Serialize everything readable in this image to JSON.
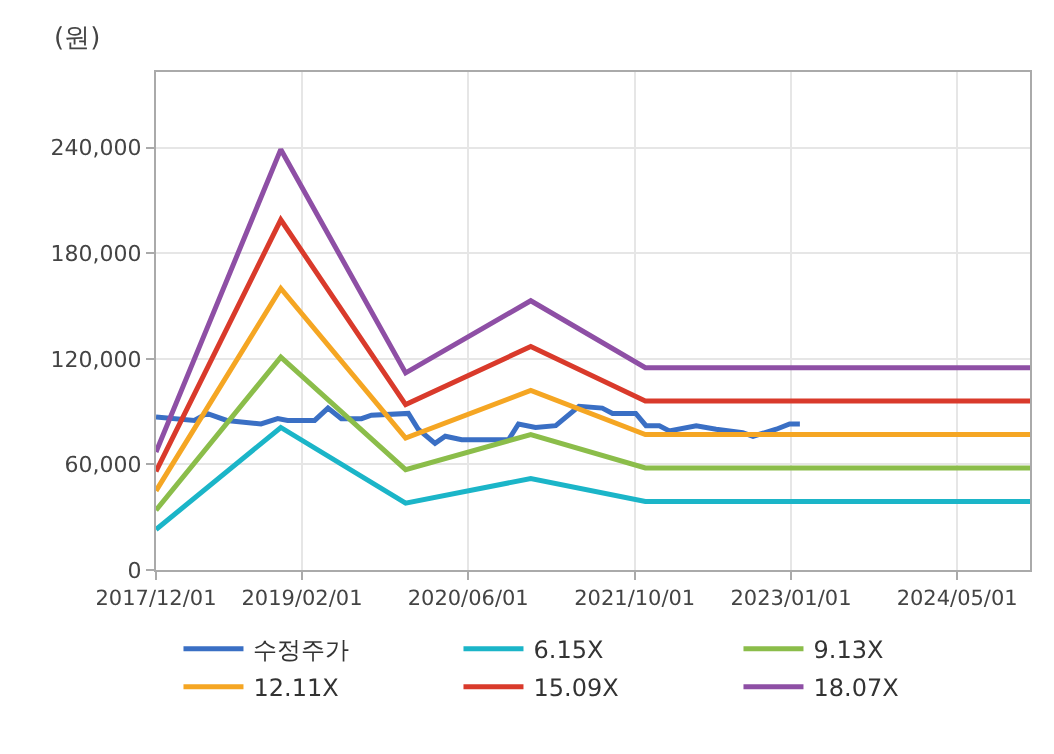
{
  "chart_data": {
    "type": "line",
    "ylabel": "(원)",
    "xlim": [
      "2017-12-01",
      "2024-11-30"
    ],
    "xticks": [
      {
        "value": "2017-12-01",
        "label": "2017/12/01"
      },
      {
        "value": "2019-02-01",
        "label": "2019/02/01"
      },
      {
        "value": "2020-06-01",
        "label": "2020/06/01"
      },
      {
        "value": "2021-10-01",
        "label": "2021/10/01"
      },
      {
        "value": "2023-01-01",
        "label": "2023/01/01"
      },
      {
        "value": "2024-05-01",
        "label": "2024/05/01"
      }
    ],
    "ylim": [
      0,
      283000
    ],
    "yticks": [
      0,
      {
        "value": 60000,
        "label": "60,000"
      },
      {
        "value": 120000,
        "label": "120,000"
      },
      {
        "value": 180000,
        "label": "180,000"
      },
      {
        "value": 240000,
        "label": "240,000"
      }
    ],
    "grid": true,
    "legend": "bottom",
    "marker": "none",
    "line_style": "solid",
    "series": [
      {
        "name": "수정주가",
        "color": "#3a6fc4",
        "x": [
          "2017-12-01",
          "2018-03-23",
          "2018-04-29",
          "2018-06-26",
          "2018-10-04",
          "2018-11-22",
          "2018-12-21",
          "2019-03-10",
          "2019-04-18",
          "2019-05-27",
          "2019-07-25",
          "2019-08-23",
          "2019-12-09",
          "2020-01-07",
          "2020-02-25",
          "2020-03-26",
          "2020-05-13",
          "2020-09-27",
          "2020-10-26",
          "2020-12-15",
          "2021-02-12",
          "2021-04-21",
          "2021-06-28",
          "2021-07-28",
          "2021-10-04",
          "2021-11-03",
          "2021-12-12",
          "2022-01-10",
          "2022-03-30",
          "2022-05-27",
          "2022-08-13",
          "2022-09-12",
          "2022-11-19",
          "2022-12-28",
          "2023-01-27"
        ],
        "values": [
          87000,
          85000,
          89000,
          85000,
          83000,
          86000,
          85000,
          85000,
          92000,
          86000,
          86000,
          88000,
          89000,
          80000,
          72000,
          76000,
          74000,
          74000,
          83000,
          81000,
          82000,
          93000,
          92000,
          89000,
          89000,
          82000,
          82000,
          79000,
          82000,
          80000,
          78000,
          76000,
          80000,
          83000,
          83000
        ]
      },
      {
        "name": "6.15X",
        "color": "#1bb5c8",
        "x": [
          "2017-12-01",
          "2018-12-01",
          "2019-12-01",
          "2020-12-01",
          "2021-11-01",
          "2024-11-30"
        ],
        "values": [
          23000,
          81000,
          38000,
          52000,
          39000,
          39000
        ]
      },
      {
        "name": "9.13X",
        "color": "#8bbd4a",
        "x": [
          "2017-12-01",
          "2018-12-01",
          "2019-12-01",
          "2020-12-01",
          "2021-11-01",
          "2024-11-30"
        ],
        "values": [
          34000,
          121000,
          57000,
          77000,
          58000,
          58000
        ]
      },
      {
        "name": "12.11X",
        "color": "#f5a623",
        "x": [
          "2017-12-01",
          "2018-12-01",
          "2019-12-01",
          "2020-12-01",
          "2021-11-01",
          "2024-11-30"
        ],
        "values": [
          45000,
          160000,
          75000,
          102000,
          77000,
          77000
        ]
      },
      {
        "name": "15.09X",
        "color": "#d93a2b",
        "x": [
          "2017-12-01",
          "2018-12-01",
          "2019-12-01",
          "2020-12-01",
          "2021-11-01",
          "2024-11-30"
        ],
        "values": [
          56000,
          199000,
          94000,
          127000,
          96000,
          96000
        ]
      },
      {
        "name": "18.07X",
        "color": "#8e4fa5",
        "x": [
          "2017-12-01",
          "2018-12-01",
          "2019-12-01",
          "2020-12-01",
          "2021-11-01",
          "2024-11-30"
        ],
        "values": [
          67000,
          239000,
          112000,
          153000,
          115000,
          115000
        ]
      }
    ]
  }
}
